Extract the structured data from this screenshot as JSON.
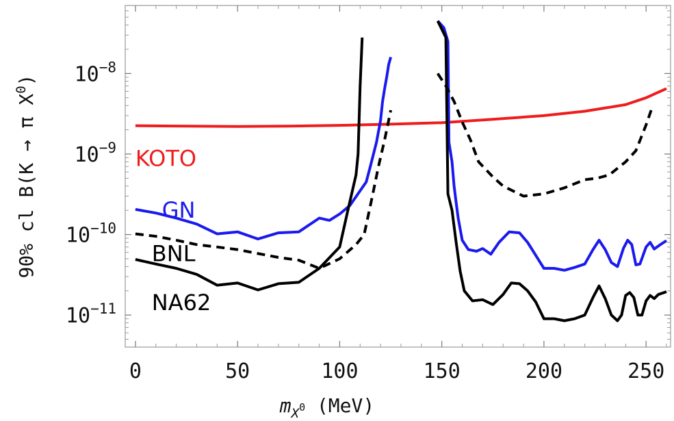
{
  "chart_data": {
    "type": "line",
    "xlabel": "m_{X^0}  (MeV)",
    "ylabel": "90% cl B(K → π X^0)",
    "xlim": [
      -5,
      262
    ],
    "ylim": [
      4e-12,
      7e-08
    ],
    "y_scale": "log",
    "x_ticks": [
      0,
      50,
      100,
      150,
      200,
      250
    ],
    "x_tick_labels": [
      "0",
      "50",
      "100",
      "150",
      "200",
      "250"
    ],
    "y_ticks": [
      1e-11,
      1e-10,
      1e-09,
      1e-08
    ],
    "y_tick_labels": [
      {
        "base": "10",
        "exp": "−11"
      },
      {
        "base": "10",
        "exp": "−10"
      },
      {
        "base": "10",
        "exp": "−9"
      },
      {
        "base": "10",
        "exp": "−8"
      }
    ],
    "grid": false,
    "series": [
      {
        "name": "KOTO",
        "color": "#ee1c1c",
        "style": "solid",
        "label_pos": [
          0,
          9e-10
        ],
        "segments": [
          [
            [
              0,
              2.25e-09
            ],
            [
              25,
              2.22e-09
            ],
            [
              50,
              2.2e-09
            ],
            [
              75,
              2.22e-09
            ],
            [
              100,
              2.27e-09
            ],
            [
              125,
              2.35e-09
            ],
            [
              150,
              2.45e-09
            ],
            [
              175,
              2.7e-09
            ],
            [
              200,
              3e-09
            ],
            [
              220,
              3.4e-09
            ],
            [
              240,
              4.1e-09
            ],
            [
              250,
              5e-09
            ],
            [
              255,
              5.7e-09
            ],
            [
              260,
              6.5e-09
            ]
          ]
        ]
      },
      {
        "name": "GN",
        "color": "#1a1aee",
        "style": "solid",
        "label_pos": [
          13,
          2.05e-10
        ],
        "segments": [
          [
            [
              0,
              2.05e-10
            ],
            [
              10,
              1.85e-10
            ],
            [
              20,
              1.6e-10
            ],
            [
              30,
              1.35e-10
            ],
            [
              40,
              1.02e-10
            ],
            [
              50,
              1.08e-10
            ],
            [
              60,
              8.8e-11
            ],
            [
              70,
              1.05e-10
            ],
            [
              80,
              1.08e-10
            ],
            [
              90,
              1.6e-10
            ],
            [
              95,
              1.5e-10
            ],
            [
              100,
              1.8e-10
            ],
            [
              105,
              2.3e-10
            ],
            [
              110,
              3.5e-10
            ],
            [
              113,
              4.5e-10
            ],
            [
              115,
              7e-10
            ],
            [
              118,
              1.4e-09
            ],
            [
              120,
              2.6e-09
            ],
            [
              121,
              4.5e-09
            ],
            [
              122,
              6.5e-09
            ],
            [
              123,
              9e-09
            ],
            [
              124,
              1.3e-08
            ],
            [
              125,
              1.6e-08
            ]
          ],
          [
            [
              148,
              4.5e-08
            ],
            [
              151,
              3.7e-08
            ],
            [
              153,
              2.5e-08
            ],
            [
              153.5,
              1.4e-09
            ],
            [
              155,
              8e-10
            ],
            [
              156,
              4e-10
            ],
            [
              157,
              2.5e-10
            ],
            [
              158,
              1.6e-10
            ],
            [
              160,
              8.5e-11
            ],
            [
              163,
              6.5e-11
            ],
            [
              167,
              6.2e-11
            ],
            [
              170,
              6.7e-11
            ],
            [
              174,
              5.7e-11
            ],
            [
              178,
              8e-11
            ],
            [
              183,
              1.08e-10
            ],
            [
              188,
              1.05e-10
            ],
            [
              192,
              8e-11
            ],
            [
              196,
              5.5e-11
            ],
            [
              200,
              3.8e-11
            ],
            [
              205,
              3.8e-11
            ],
            [
              210,
              3.6e-11
            ],
            [
              215,
              3.9e-11
            ],
            [
              220,
              4.3e-11
            ],
            [
              224,
              6.5e-11
            ],
            [
              227,
              8.5e-11
            ],
            [
              230,
              6.5e-11
            ],
            [
              233,
              4.5e-11
            ],
            [
              236,
              4e-11
            ],
            [
              239,
              6.8e-11
            ],
            [
              241,
              8.5e-11
            ],
            [
              243,
              7.5e-11
            ],
            [
              245,
              4.2e-11
            ],
            [
              247,
              4.3e-11
            ],
            [
              250,
              7e-11
            ],
            [
              252,
              8e-11
            ],
            [
              254,
              6.6e-11
            ],
            [
              257,
              7.5e-11
            ],
            [
              260,
              8.4e-11
            ]
          ]
        ]
      },
      {
        "name": "BNL",
        "color": "#000000",
        "style": "dashed",
        "label_pos": [
          8,
          5.9e-11
        ],
        "segments": [
          [
            [
              0,
              1.02e-10
            ],
            [
              10,
              9.5e-11
            ],
            [
              20,
              8.5e-11
            ],
            [
              30,
              7.5e-11
            ],
            [
              40,
              7e-11
            ],
            [
              50,
              6.5e-11
            ],
            [
              60,
              5.8e-11
            ],
            [
              70,
              5.2e-11
            ],
            [
              80,
              4.8e-11
            ],
            [
              90,
              3.8e-11
            ],
            [
              100,
              5e-11
            ],
            [
              108,
              7.5e-11
            ],
            [
              112,
              1e-10
            ],
            [
              116,
              3e-10
            ],
            [
              119,
              7e-10
            ],
            [
              122,
              1.5e-09
            ],
            [
              125,
              3.5e-09
            ]
          ],
          [
            [
              148,
              1e-08
            ],
            [
              152,
              7e-09
            ],
            [
              156,
              4.5e-09
            ],
            [
              160,
              2.5e-09
            ],
            [
              164,
              1.5e-09
            ],
            [
              168,
              8e-10
            ],
            [
              175,
              5.2e-10
            ],
            [
              180,
              4e-10
            ],
            [
              190,
              3e-10
            ],
            [
              200,
              3.2e-10
            ],
            [
              210,
              3.8e-10
            ],
            [
              220,
              4.8e-10
            ],
            [
              226,
              5e-10
            ],
            [
              232,
              5.5e-10
            ],
            [
              240,
              8e-10
            ],
            [
              245,
              1.1e-09
            ],
            [
              250,
              2.3e-09
            ],
            [
              253,
              3.8e-09
            ]
          ]
        ]
      },
      {
        "name": "NA62",
        "color": "#000000",
        "style": "solid",
        "label_pos": [
          8,
          1.45e-11
        ],
        "segments": [
          [
            [
              0,
              4.9e-11
            ],
            [
              10,
              4.3e-11
            ],
            [
              20,
              3.8e-11
            ],
            [
              30,
              3.2e-11
            ],
            [
              40,
              2.35e-11
            ],
            [
              50,
              2.5e-11
            ],
            [
              60,
              2.05e-11
            ],
            [
              70,
              2.45e-11
            ],
            [
              80,
              2.55e-11
            ],
            [
              90,
              3.8e-11
            ],
            [
              100,
              7e-11
            ],
            [
              104,
              2e-10
            ],
            [
              108,
              5.5e-10
            ],
            [
              109,
              1e-09
            ],
            [
              110,
              7e-09
            ],
            [
              111,
              2.8e-08
            ]
          ],
          [
            [
              148,
              4.5e-08
            ],
            [
              152,
              2.8e-08
            ],
            [
              153,
              3.2e-10
            ],
            [
              155,
              2e-10
            ],
            [
              157,
              8e-11
            ],
            [
              159,
              3.5e-11
            ],
            [
              161,
              2e-11
            ],
            [
              165,
              1.5e-11
            ],
            [
              170,
              1.55e-11
            ],
            [
              175,
              1.35e-11
            ],
            [
              180,
              1.8e-11
            ],
            [
              184,
              2.5e-11
            ],
            [
              188,
              2.45e-11
            ],
            [
              192,
              2e-11
            ],
            [
              196,
              1.45e-11
            ],
            [
              200,
              9e-12
            ],
            [
              205,
              9e-12
            ],
            [
              210,
              8.5e-12
            ],
            [
              215,
              9e-12
            ],
            [
              220,
              1e-11
            ],
            [
              224,
              1.65e-11
            ],
            [
              227,
              2.3e-11
            ],
            [
              230,
              1.6e-11
            ],
            [
              233,
              1e-11
            ],
            [
              236,
              8.5e-12
            ],
            [
              238,
              1e-11
            ],
            [
              240,
              1.75e-11
            ],
            [
              242,
              1.9e-11
            ],
            [
              244,
              1.65e-11
            ],
            [
              246,
              1e-11
            ],
            [
              248,
              1e-11
            ],
            [
              250,
              1.5e-11
            ],
            [
              252,
              1.75e-11
            ],
            [
              254,
              1.6e-11
            ],
            [
              256,
              1.8e-11
            ],
            [
              260,
              1.95e-11
            ]
          ]
        ]
      }
    ]
  }
}
